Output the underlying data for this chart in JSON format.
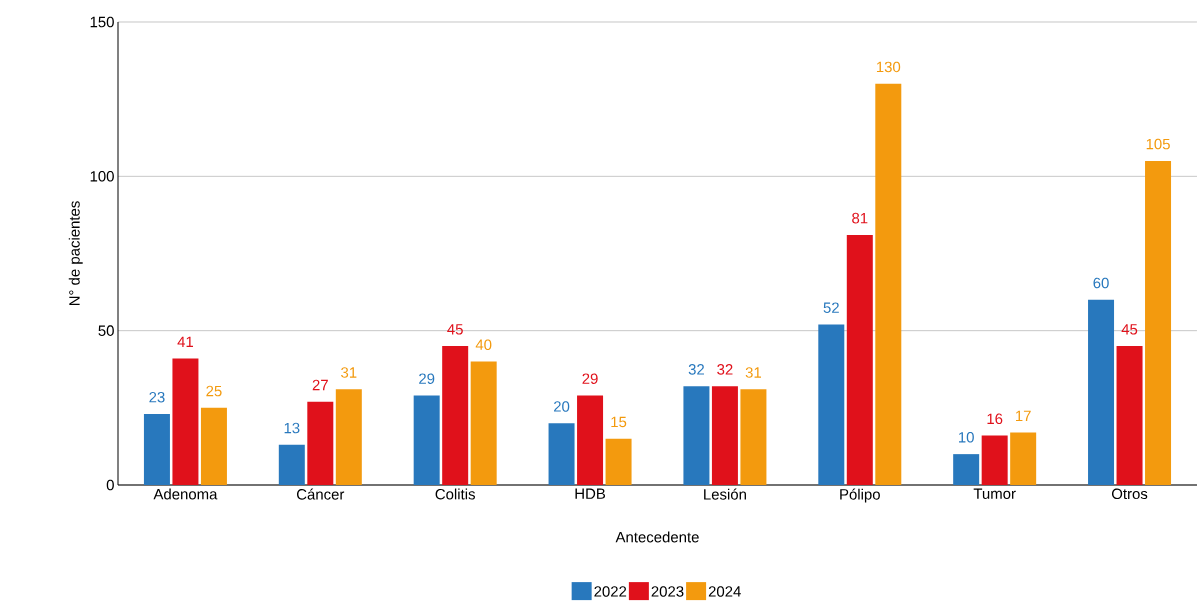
{
  "chart_data": {
    "type": "bar",
    "xlabel": "Antecedente",
    "ylabel": "N° de pacientes",
    "categories": [
      "Adenoma",
      "Cáncer",
      "Colitis",
      "HDB",
      "Lesión",
      "Pólipo",
      "Tumor",
      "Otros"
    ],
    "series": [
      {
        "name": "2022",
        "color": "#2878bd",
        "values": [
          23,
          13,
          29,
          20,
          32,
          52,
          10,
          60
        ]
      },
      {
        "name": "2023",
        "color": "#e0111b",
        "values": [
          41,
          27,
          45,
          29,
          32,
          81,
          16,
          45
        ]
      },
      {
        "name": "2024",
        "color": "#f39a0e",
        "values": [
          25,
          31,
          40,
          15,
          31,
          130,
          17,
          105
        ]
      }
    ],
    "ylim": [
      0,
      150
    ],
    "yticks": [
      0,
      50,
      100,
      150
    ],
    "grid": "y",
    "legend": "bottom",
    "data_labels": true
  }
}
